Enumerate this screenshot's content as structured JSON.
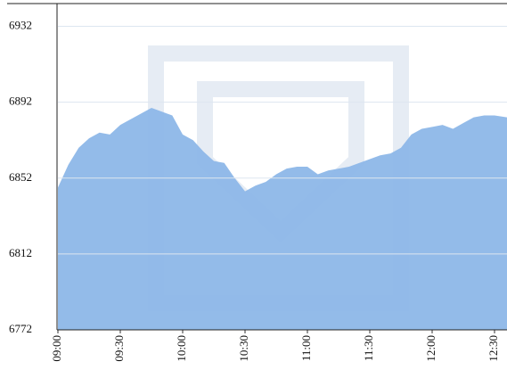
{
  "chart_data": {
    "type": "area",
    "x": [
      "09:00",
      "09:05",
      "09:10",
      "09:15",
      "09:20",
      "09:25",
      "09:30",
      "09:35",
      "09:40",
      "09:45",
      "09:50",
      "09:55",
      "10:00",
      "10:05",
      "10:10",
      "10:15",
      "10:20",
      "10:25",
      "10:30",
      "10:35",
      "10:40",
      "10:45",
      "10:50",
      "10:55",
      "11:00",
      "11:05",
      "11:10",
      "11:15",
      "11:20",
      "11:25",
      "11:30",
      "11:35",
      "11:40",
      "11:45",
      "11:50",
      "11:55",
      "12:00",
      "12:05",
      "12:10",
      "12:15",
      "12:20",
      "12:25",
      "12:30",
      "12:36"
    ],
    "values": [
      6847,
      6859,
      6868,
      6873,
      6876,
      6875,
      6880,
      6883,
      6886,
      6889,
      6887,
      6885,
      6875,
      6872,
      6866,
      6861,
      6860,
      6852,
      6845,
      6848,
      6850,
      6854,
      6857,
      6858,
      6858,
      6854,
      6856,
      6857,
      6858,
      6860,
      6862,
      6864,
      6865,
      6868,
      6875,
      6878,
      6879,
      6880,
      6878,
      6881,
      6884,
      6885,
      6885,
      6884
    ],
    "color": "#8db7e8",
    "xlim": [
      "09:00",
      "12:36"
    ],
    "xticks": [
      "09:00",
      "09:30",
      "10:00",
      "10:30",
      "11:00",
      "11:30",
      "12:00",
      "12:30"
    ],
    "ylim": [
      6772,
      6944
    ],
    "yticks": [
      6772,
      6812,
      6852,
      6892,
      6932
    ],
    "grid": true
  }
}
